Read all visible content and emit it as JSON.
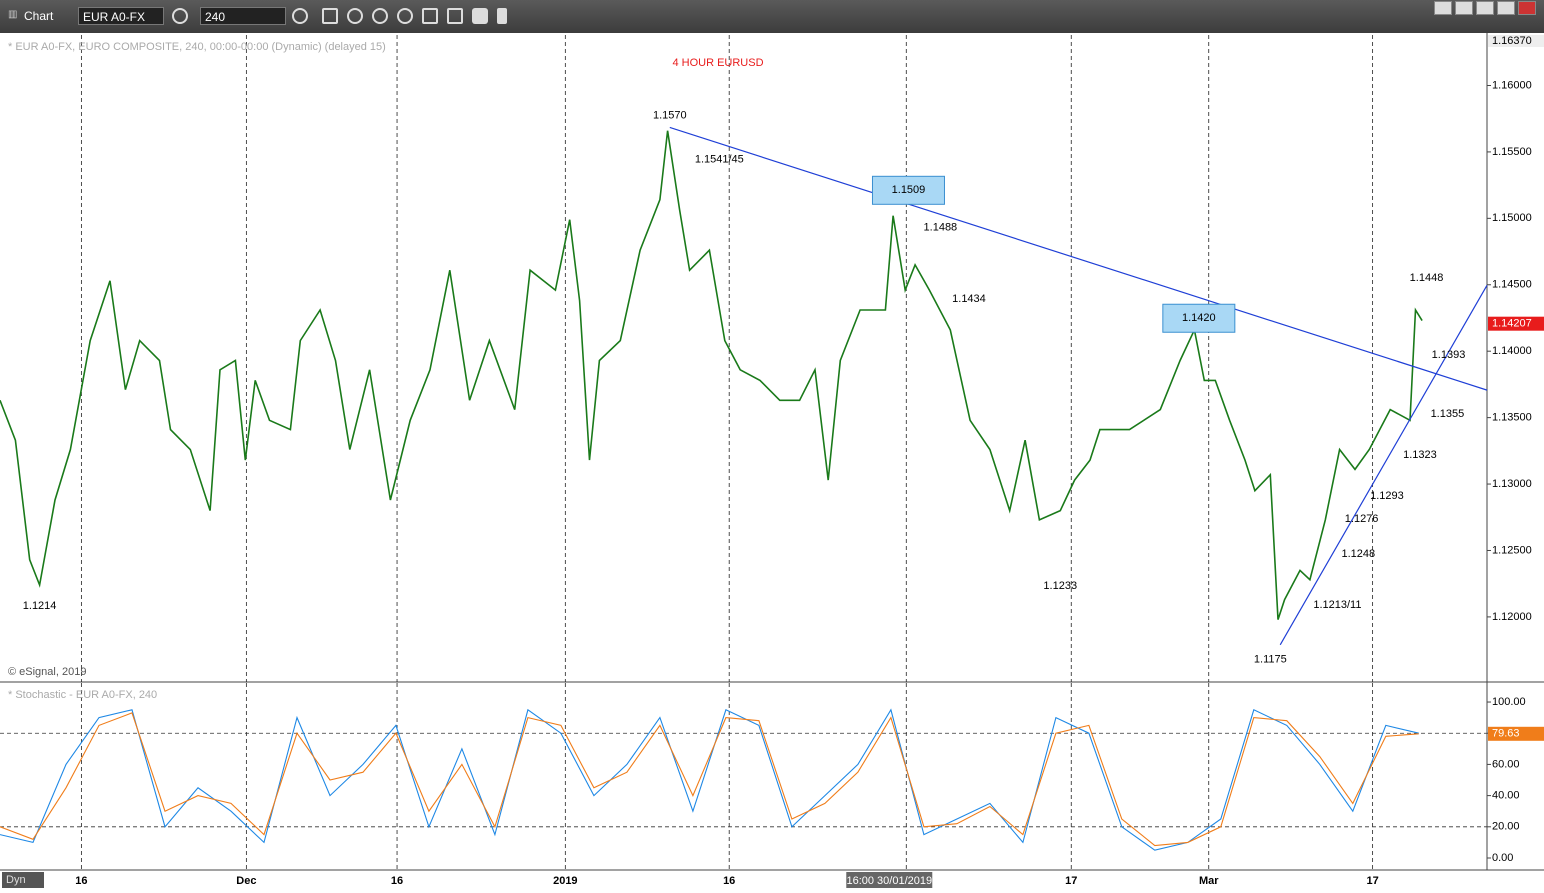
{
  "toolbar": {
    "title": "Chart",
    "symbol": "EUR A0-FX",
    "interval": "240"
  },
  "chart_data": [
    {
      "type": "line",
      "title": "4 HOUR EURUSD",
      "subtitle": "* EUR A0-FX, EURO COMPOSITE, 240, 00:00-00:00 (Dynamic) (delayed 15)",
      "credit": "© eSignal, 2019",
      "xlim": [
        0,
        135.2
      ],
      "ylim": [
        1.1151,
        1.1638
      ],
      "xticks": [
        {
          "value": 7.4,
          "label": "16"
        },
        {
          "value": 22.4,
          "label": "Dec"
        },
        {
          "value": 36.1,
          "label": "16"
        },
        {
          "value": 51.4,
          "label": "2019"
        },
        {
          "value": 66.3,
          "label": "16"
        },
        {
          "value": 82.4,
          "label": "16:00 30/01/2019"
        },
        {
          "value": 97.4,
          "label": "17"
        },
        {
          "value": 109.9,
          "label": "Mar"
        },
        {
          "value": 124.8,
          "label": "17"
        }
      ],
      "yticks": [
        {
          "value": 1.12,
          "label": "1.12000"
        },
        {
          "value": 1.125,
          "label": "1.12500"
        },
        {
          "value": 1.13,
          "label": "1.13000"
        },
        {
          "value": 1.135,
          "label": "1.13500"
        },
        {
          "value": 1.14,
          "label": "1.14000"
        },
        {
          "value": 1.145,
          "label": "1.14500"
        },
        {
          "value": 1.15,
          "label": "1.15000"
        },
        {
          "value": 1.155,
          "label": "1.15500"
        },
        {
          "value": 1.16,
          "label": "1.16000"
        }
      ],
      "top_value": {
        "value": 1.1637,
        "label": "1.16370"
      },
      "last_value": 1.14207,
      "last_color": "#e81c1c",
      "title_color": "#e81c1c",
      "x": [
        0,
        1.4,
        2.7,
        3.6,
        5.0,
        6.4,
        8.2,
        10.0,
        11.4,
        12.7,
        14.5,
        15.5,
        17.3,
        19.1,
        20.0,
        21.4,
        22.3,
        23.2,
        24.5,
        26.4,
        27.3,
        29.1,
        30.5,
        31.8,
        33.6,
        35.5,
        37.3,
        39.1,
        40.9,
        42.7,
        44.5,
        46.8,
        48.2,
        50.5,
        51.8,
        52.7,
        53.6,
        54.5,
        56.4,
        58.2,
        60.0,
        60.7,
        61.8,
        62.7,
        64.5,
        65.9,
        67.3,
        69.1,
        70.9,
        72.7,
        74.1,
        75.3,
        76.4,
        78.2,
        80.5,
        81.2,
        82.3,
        83.2,
        84.5,
        86.4,
        88.2,
        90.0,
        91.8,
        93.2,
        94.5,
        96.4,
        97.7,
        99.1,
        100.0,
        102.7,
        105.5,
        107.3,
        108.6,
        109.5,
        110.5,
        111.8,
        113.2,
        114.1,
        115.5,
        116.2,
        116.8,
        118.2,
        119.1,
        120.5,
        121.8,
        123.2,
        124.5,
        126.4,
        128.2,
        128.7,
        129.3
      ],
      "series": [
        {
          "color": "#1a7a1a",
          "values": [
            1.1363,
            1.1333,
            1.1243,
            1.1224,
            1.1288,
            1.1326,
            1.1408,
            1.1453,
            1.1371,
            1.1408,
            1.1393,
            1.1341,
            1.1326,
            1.128,
            1.1386,
            1.1393,
            1.1318,
            1.1378,
            1.1348,
            1.1341,
            1.1408,
            1.1431,
            1.1393,
            1.1326,
            1.1386,
            1.1288,
            1.1348,
            1.1386,
            1.1461,
            1.1363,
            1.1408,
            1.1356,
            1.1461,
            1.1446,
            1.1499,
            1.1438,
            1.1318,
            1.1393,
            1.1408,
            1.1476,
            1.1514,
            1.1566,
            1.1506,
            1.1461,
            1.1476,
            1.1408,
            1.1386,
            1.1378,
            1.1363,
            1.1363,
            1.1386,
            1.1303,
            1.1393,
            1.1431,
            1.1431,
            1.1502,
            1.1446,
            1.1465,
            1.1446,
            1.1416,
            1.1348,
            1.1326,
            1.128,
            1.1333,
            1.1273,
            1.128,
            1.1303,
            1.1318,
            1.1341,
            1.1341,
            1.1356,
            1.1393,
            1.1416,
            1.1378,
            1.1378,
            1.1348,
            1.1318,
            1.1295,
            1.1307,
            1.1198,
            1.1213,
            1.1235,
            1.1228,
            1.1273,
            1.1326,
            1.1311,
            1.1326,
            1.1356,
            1.1348,
            1.1431,
            1.1423
          ]
        }
      ],
      "trendlines": [
        {
          "color": "#1f3fd6",
          "x": [
            60.9,
            135.2
          ],
          "y": [
            1.15684,
            1.13707
          ]
        },
        {
          "color": "#1f3fd6",
          "x": [
            116.4,
            135.2
          ],
          "y": [
            1.1179,
            1.14496
          ]
        }
      ],
      "annotations": [
        {
          "label": "1.1214",
          "x": 3.6,
          "y": 1.12083
        },
        {
          "label": "1.1570",
          "x": 60.9,
          "y": 1.15774
        },
        {
          "label": "1.1541/45",
          "x": 65.4,
          "y": 1.15444
        },
        {
          "label": "1.1509",
          "x": 82.6,
          "y": 1.15211,
          "boxed": true
        },
        {
          "label": "1.1488",
          "x": 85.5,
          "y": 1.14932
        },
        {
          "label": "1.1434",
          "x": 88.1,
          "y": 1.14391
        },
        {
          "label": "1.1233",
          "x": 96.4,
          "y": 1.12233
        },
        {
          "label": "1.1420",
          "x": 109.0,
          "y": 1.14248,
          "boxed": true
        },
        {
          "label": "1.1448",
          "x": 129.7,
          "y": 1.14549
        },
        {
          "label": "1.1393",
          "x": 131.7,
          "y": 1.1397
        },
        {
          "label": "1.1355",
          "x": 131.6,
          "y": 1.13526
        },
        {
          "label": "1.1323",
          "x": 129.1,
          "y": 1.13218
        },
        {
          "label": "1.1293",
          "x": 126.1,
          "y": 1.1291
        },
        {
          "label": "1.1276",
          "x": 123.8,
          "y": 1.12737
        },
        {
          "label": "1.1248",
          "x": 123.5,
          "y": 1.12474
        },
        {
          "label": "1.1213/11",
          "x": 121.6,
          "y": 1.1209
        },
        {
          "label": "1.1175",
          "x": 115.5,
          "y": 1.11677
        }
      ]
    },
    {
      "type": "line",
      "subtitle": "* Stochastic - EUR A0-FX, 240",
      "corner_label": "Dyn",
      "xlim": [
        0,
        135.2
      ],
      "ylim": [
        -7.7,
        112.2
      ],
      "yticks": [
        {
          "value": 0,
          "label": "0.00"
        },
        {
          "value": 20,
          "label": "20.00"
        },
        {
          "value": 40,
          "label": "40.00"
        },
        {
          "value": 60,
          "label": "60.00"
        },
        {
          "value": 80,
          "label": "80.00"
        },
        {
          "value": 100,
          "label": "100.00"
        }
      ],
      "ref_lines": [
        20,
        80
      ],
      "last_value": 79.63,
      "last_color": "#f07d1a",
      "x": [
        0,
        3,
        6,
        9,
        12,
        15,
        18,
        21,
        24,
        27,
        30,
        33,
        36,
        39,
        42,
        45,
        48,
        51,
        54,
        57,
        60,
        63,
        66,
        69,
        72,
        75,
        78,
        81,
        84,
        87,
        90,
        93,
        96,
        99,
        102,
        105,
        108,
        111,
        114,
        117,
        120,
        123,
        126,
        129
      ],
      "series": [
        {
          "color": "#1e88e5",
          "values": [
            15,
            10,
            60,
            90,
            95,
            20,
            45,
            30,
            10,
            90,
            40,
            60,
            85,
            20,
            70,
            15,
            95,
            80,
            40,
            60,
            90,
            30,
            95,
            85,
            20,
            40,
            60,
            95,
            15,
            25,
            35,
            10,
            90,
            80,
            20,
            5,
            10,
            25,
            95,
            85,
            60,
            30,
            85,
            80
          ]
        },
        {
          "color": "#f07d1a",
          "values": [
            20,
            12,
            45,
            85,
            93,
            30,
            40,
            35,
            15,
            80,
            50,
            55,
            80,
            30,
            60,
            20,
            90,
            85,
            45,
            55,
            85,
            40,
            90,
            88,
            25,
            35,
            55,
            90,
            20,
            22,
            33,
            15,
            80,
            85,
            25,
            8,
            10,
            20,
            90,
            88,
            65,
            35,
            78,
            79.63
          ]
        }
      ]
    }
  ]
}
